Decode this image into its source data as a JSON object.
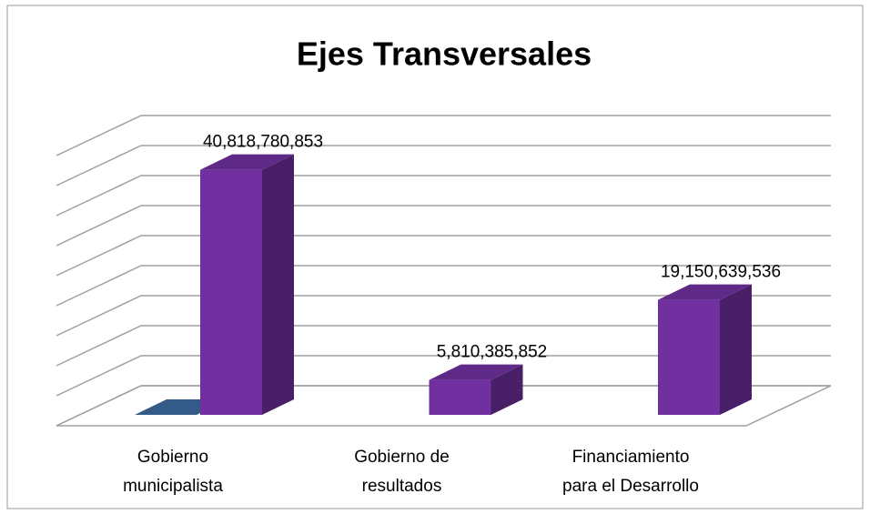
{
  "chart_data": {
    "type": "bar3d",
    "title": "Ejes Transversales",
    "categories": [
      [
        "Gobierno",
        "municipalista"
      ],
      [
        "Gobierno de",
        "resultados"
      ],
      [
        "Financiamiento",
        "para el Desarrollo"
      ]
    ],
    "series": [
      {
        "color": "#3d6aa0",
        "values": [
          0,
          null,
          null
        ]
      },
      {
        "color": "#7030a0",
        "values": [
          40818780853,
          5810385852,
          19150639536
        ],
        "value_labels": [
          "40,818,780,853",
          "5,810,385,852",
          "19,150,639,536"
        ]
      }
    ],
    "ylim": [
      0,
      45000000000
    ],
    "yticks": [
      0,
      5000000000,
      10000000000,
      15000000000,
      20000000000,
      25000000000,
      30000000000,
      35000000000,
      40000000000,
      45000000000
    ],
    "grid": true
  }
}
